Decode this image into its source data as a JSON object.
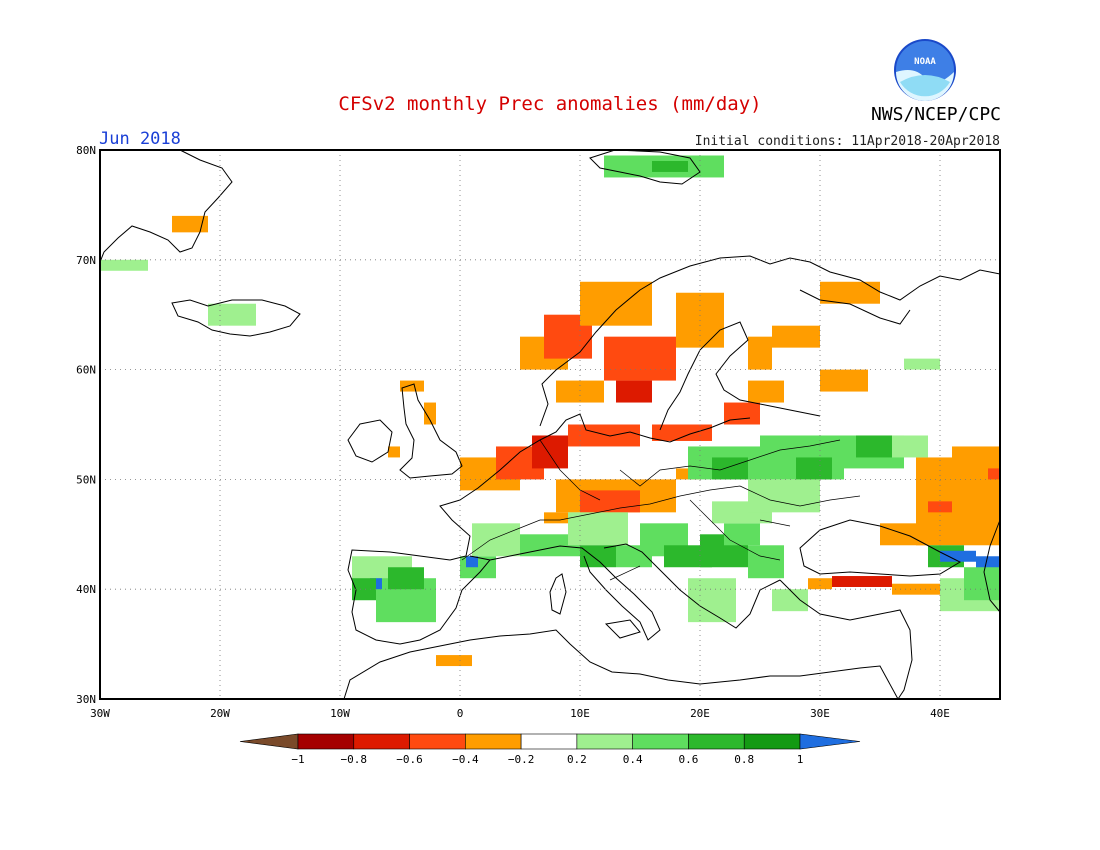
{
  "header": {
    "title": "CFSv2 monthly Prec anomalies (mm/day)",
    "month_label": "Jun 2018",
    "initial_conditions": "Initial conditions: 11Apr2018-20Apr2018",
    "agency": "NWS/NCEP/CPC",
    "logo_text": "NOAA"
  },
  "colors": {
    "title": "#d40000",
    "month": "#1a3fd6",
    "ocean": "#ffffff",
    "coast": "#000000",
    "grid": "#777777"
  },
  "map": {
    "lon_range": [
      -30,
      45
    ],
    "lat_range": [
      30,
      80
    ],
    "lon_ticks": [
      {
        "lon": -30,
        "label": "30W"
      },
      {
        "lon": -20,
        "label": "20W"
      },
      {
        "lon": -10,
        "label": "10W"
      },
      {
        "lon": 0,
        "label": "0"
      },
      {
        "lon": 10,
        "label": "10E"
      },
      {
        "lon": 20,
        "label": "20E"
      },
      {
        "lon": 30,
        "label": "30E"
      },
      {
        "lon": 40,
        "label": "40E"
      }
    ],
    "lat_ticks": [
      {
        "lat": 30,
        "label": "30N"
      },
      {
        "lat": 40,
        "label": "40N"
      },
      {
        "lat": 50,
        "label": "50N"
      },
      {
        "lat": 60,
        "label": "60N"
      },
      {
        "lat": 70,
        "label": "70N"
      },
      {
        "lat": 80,
        "label": "80N"
      }
    ]
  },
  "chart_data": {
    "type": "heatmap",
    "title": "CFSv2 monthly Prec anomalies (mm/day)",
    "variable": "Prec anomalies (mm/day)",
    "legend_placement": "bottom",
    "color_scale": {
      "bins": [
        {
          "min": null,
          "max": -1,
          "color": "#7a4a2a"
        },
        {
          "min": -1,
          "max": -0.8,
          "color": "#a50000"
        },
        {
          "min": -0.8,
          "max": -0.6,
          "color": "#dd1a00"
        },
        {
          "min": -0.6,
          "max": -0.4,
          "color": "#ff4a10"
        },
        {
          "min": -0.4,
          "max": -0.2,
          "color": "#ff9d00"
        },
        {
          "min": -0.2,
          "max": 0.2,
          "color": "#ffffff"
        },
        {
          "min": 0.2,
          "max": 0.4,
          "color": "#9ff08f"
        },
        {
          "min": 0.4,
          "max": 0.6,
          "color": "#5fde5f"
        },
        {
          "min": 0.6,
          "max": 0.8,
          "color": "#2cb82c"
        },
        {
          "min": 0.8,
          "max": 1,
          "color": "#139a13"
        },
        {
          "min": 1,
          "max": null,
          "color": "#1f6ee0"
        }
      ],
      "tick_labels": [
        "−1",
        "−0.8",
        "−0.6",
        "−0.4",
        "−0.2",
        "0.2",
        "0.4",
        "0.6",
        "0.8",
        "1"
      ]
    },
    "cells": [
      {
        "lon": [
          -24,
          -21
        ],
        "lat": [
          72.5,
          74
        ],
        "value": -0.3
      },
      {
        "lon": [
          -30,
          -26
        ],
        "lat": [
          69,
          70
        ],
        "value": 0.3
      },
      {
        "lon": [
          -21,
          -17
        ],
        "lat": [
          64,
          66
        ],
        "value": 0.3
      },
      {
        "lon": [
          12,
          22
        ],
        "lat": [
          77.5,
          79.5
        ],
        "value": 0.4
      },
      {
        "lon": [
          16,
          19
        ],
        "lat": [
          78,
          79
        ],
        "value": 0.7
      },
      {
        "lon": [
          5,
          9
        ],
        "lat": [
          60,
          63
        ],
        "value": -0.3
      },
      {
        "lon": [
          7,
          11
        ],
        "lat": [
          61,
          65
        ],
        "value": -0.5
      },
      {
        "lon": [
          10,
          16
        ],
        "lat": [
          64,
          68
        ],
        "value": -0.3
      },
      {
        "lon": [
          12,
          18
        ],
        "lat": [
          59,
          63
        ],
        "value": -0.5
      },
      {
        "lon": [
          13,
          16
        ],
        "lat": [
          57,
          59
        ],
        "value": -0.7
      },
      {
        "lon": [
          8,
          12
        ],
        "lat": [
          57,
          59
        ],
        "value": -0.4
      },
      {
        "lon": [
          18,
          22
        ],
        "lat": [
          62,
          67
        ],
        "value": -0.3
      },
      {
        "lon": [
          24,
          26
        ],
        "lat": [
          60,
          63
        ],
        "value": -0.3
      },
      {
        "lon": [
          26,
          30
        ],
        "lat": [
          62,
          64
        ],
        "value": -0.3
      },
      {
        "lon": [
          24,
          27
        ],
        "lat": [
          57,
          59
        ],
        "value": -0.3
      },
      {
        "lon": [
          30,
          34
        ],
        "lat": [
          58,
          60
        ],
        "value": -0.3
      },
      {
        "lon": [
          30,
          35
        ],
        "lat": [
          66,
          68
        ],
        "value": -0.3
      },
      {
        "lon": [
          -5,
          -3
        ],
        "lat": [
          58,
          59
        ],
        "value": -0.3
      },
      {
        "lon": [
          -3,
          -2
        ],
        "lat": [
          55,
          57
        ],
        "value": -0.3
      },
      {
        "lon": [
          -6,
          -5
        ],
        "lat": [
          52,
          53
        ],
        "value": -0.3
      },
      {
        "lon": [
          0,
          5
        ],
        "lat": [
          49,
          52
        ],
        "value": -0.3
      },
      {
        "lon": [
          3,
          7
        ],
        "lat": [
          50,
          53
        ],
        "value": -0.6
      },
      {
        "lon": [
          6,
          9
        ],
        "lat": [
          51,
          54
        ],
        "value": -0.8
      },
      {
        "lon": [
          9,
          15
        ],
        "lat": [
          53,
          55
        ],
        "value": -0.5
      },
      {
        "lon": [
          16,
          21
        ],
        "lat": [
          53.5,
          55
        ],
        "value": -0.6
      },
      {
        "lon": [
          22,
          25
        ],
        "lat": [
          55,
          57
        ],
        "value": -0.5
      },
      {
        "lon": [
          8,
          18
        ],
        "lat": [
          47,
          50
        ],
        "value": -0.3
      },
      {
        "lon": [
          10,
          15
        ],
        "lat": [
          47,
          49
        ],
        "value": -0.5
      },
      {
        "lon": [
          7,
          10
        ],
        "lat": [
          46,
          47
        ],
        "value": -0.4
      },
      {
        "lon": [
          18,
          20
        ],
        "lat": [
          50,
          51
        ],
        "value": -0.3
      },
      {
        "lon": [
          38,
          45
        ],
        "lat": [
          44,
          52
        ],
        "value": -0.3
      },
      {
        "lon": [
          35,
          39
        ],
        "lat": [
          44,
          46
        ],
        "value": -0.3
      },
      {
        "lon": [
          41,
          45
        ],
        "lat": [
          51,
          53
        ],
        "value": -0.3
      },
      {
        "lon": [
          44,
          45
        ],
        "lat": [
          50,
          51
        ],
        "value": -0.5
      },
      {
        "lon": [
          39,
          41
        ],
        "lat": [
          47,
          48
        ],
        "value": -0.5
      },
      {
        "lon": [
          29,
          31
        ],
        "lat": [
          40,
          41
        ],
        "value": -0.3
      },
      {
        "lon": [
          31,
          36
        ],
        "lat": [
          40.2,
          41.2
        ],
        "value": -0.8
      },
      {
        "lon": [
          36,
          41
        ],
        "lat": [
          39.5,
          40.5
        ],
        "value": -0.3
      },
      {
        "lon": [
          -2,
          1
        ],
        "lat": [
          33,
          34
        ],
        "value": -0.3
      },
      {
        "lon": [
          -9,
          -4
        ],
        "lat": [
          39,
          43
        ],
        "value": 0.3
      },
      {
        "lon": [
          -7,
          -2
        ],
        "lat": [
          37,
          41
        ],
        "value": 0.4
      },
      {
        "lon": [
          -7.5,
          -6.5
        ],
        "lat": [
          40,
          41
        ],
        "value": 1.2
      },
      {
        "lon": [
          -9,
          -7
        ],
        "lat": [
          39,
          41
        ],
        "value": 0.7
      },
      {
        "lon": [
          -6,
          -3
        ],
        "lat": [
          40,
          42
        ],
        "value": 0.6
      },
      {
        "lon": [
          0,
          3
        ],
        "lat": [
          41,
          43
        ],
        "value": 0.5
      },
      {
        "lon": [
          0.5,
          1.5
        ],
        "lat": [
          42,
          43
        ],
        "value": 1.2
      },
      {
        "lon": [
          1,
          5
        ],
        "lat": [
          43,
          46
        ],
        "value": 0.3
      },
      {
        "lon": [
          5,
          10
        ],
        "lat": [
          43,
          45
        ],
        "value": 0.4
      },
      {
        "lon": [
          9,
          14
        ],
        "lat": [
          44,
          47
        ],
        "value": 0.3
      },
      {
        "lon": [
          10,
          13
        ],
        "lat": [
          42,
          44
        ],
        "value": 0.6
      },
      {
        "lon": [
          13,
          16
        ],
        "lat": [
          42,
          44
        ],
        "value": 0.5
      },
      {
        "lon": [
          15,
          19
        ],
        "lat": [
          43,
          46
        ],
        "value": 0.4
      },
      {
        "lon": [
          17,
          21
        ],
        "lat": [
          42,
          44
        ],
        "value": 0.7
      },
      {
        "lon": [
          20,
          24
        ],
        "lat": [
          42,
          45
        ],
        "value": 0.6
      },
      {
        "lon": [
          19,
          23
        ],
        "lat": [
          37,
          41
        ],
        "value": 0.3
      },
      {
        "lon": [
          22,
          25
        ],
        "lat": [
          44,
          46
        ],
        "value": 0.5
      },
      {
        "lon": [
          24,
          27
        ],
        "lat": [
          41,
          44
        ],
        "value": 0.4
      },
      {
        "lon": [
          21,
          26
        ],
        "lat": [
          46,
          48
        ],
        "value": 0.3
      },
      {
        "lon": [
          19,
          25
        ],
        "lat": [
          50,
          53
        ],
        "value": 0.5
      },
      {
        "lon": [
          21,
          24
        ],
        "lat": [
          50,
          52
        ],
        "value": 0.6
      },
      {
        "lon": [
          25,
          32
        ],
        "lat": [
          50,
          54
        ],
        "value": 0.4
      },
      {
        "lon": [
          28,
          31
        ],
        "lat": [
          50,
          52
        ],
        "value": 0.6
      },
      {
        "lon": [
          32,
          37
        ],
        "lat": [
          51,
          54
        ],
        "value": 0.5
      },
      {
        "lon": [
          33,
          36
        ],
        "lat": [
          52,
          54
        ],
        "value": 0.7
      },
      {
        "lon": [
          36,
          39
        ],
        "lat": [
          52,
          54
        ],
        "value": 0.3
      },
      {
        "lon": [
          24,
          30
        ],
        "lat": [
          47,
          50
        ],
        "value": 0.3
      },
      {
        "lon": [
          37,
          40
        ],
        "lat": [
          60,
          61
        ],
        "value": 0.3
      },
      {
        "lon": [
          39,
          42
        ],
        "lat": [
          42,
          44
        ],
        "value": 0.6
      },
      {
        "lon": [
          40,
          43
        ],
        "lat": [
          42.5,
          43.5
        ],
        "value": 1.2
      },
      {
        "lon": [
          43,
          45
        ],
        "lat": [
          41,
          43
        ],
        "value": 1.2
      },
      {
        "lon": [
          40,
          45
        ],
        "lat": [
          38,
          41
        ],
        "value": 0.3
      },
      {
        "lon": [
          42,
          45
        ],
        "lat": [
          39,
          42
        ],
        "value": 0.5
      },
      {
        "lon": [
          26,
          29
        ],
        "lat": [
          38,
          40
        ],
        "value": 0.3
      }
    ]
  }
}
